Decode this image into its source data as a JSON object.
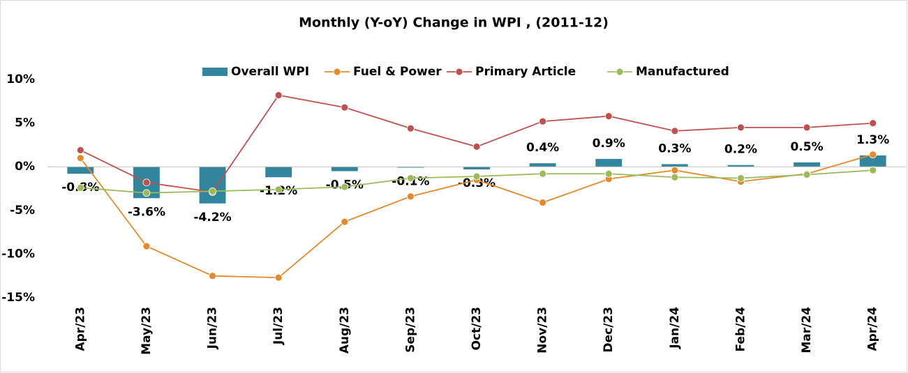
{
  "chart_data": {
    "type": "bar_line",
    "title": "Monthly (Y-oY) Change in WPI , (2011-12)",
    "categories": [
      "Apr/23",
      "May/23",
      "Jun/23",
      "Jul/23",
      "Aug/23",
      "Sep/23",
      "Oct/23",
      "Nov/23",
      "Dec/23",
      "Jan/24",
      "Feb/24",
      "Mar/24",
      "Apr/24"
    ],
    "series": [
      {
        "name": "Overall WPI",
        "type": "bar",
        "color": "#31859c",
        "values": [
          -0.8,
          -3.6,
          -4.2,
          -1.2,
          -0.5,
          -0.1,
          -0.3,
          0.4,
          0.9,
          0.3,
          0.2,
          0.5,
          1.3
        ],
        "value_labels": [
          "-0.8%",
          "-3.6%",
          "-4.2%",
          "-1.2%",
          "-0.5%",
          "-0.1%",
          "-0.3%",
          "0.4%",
          "0.9%",
          "0.3%",
          "0.2%",
          "0.5%",
          "1.3%"
        ]
      },
      {
        "name": "Fuel & Power",
        "type": "line",
        "color": "#e58a2c",
        "values": [
          1.0,
          -9.1,
          -12.5,
          -12.7,
          -6.3,
          -3.4,
          -1.5,
          -4.1,
          -1.4,
          -0.4,
          -1.7,
          -0.8,
          1.4
        ]
      },
      {
        "name": "Primary Article",
        "type": "line",
        "color": "#c0504d",
        "values": [
          1.9,
          -1.8,
          -2.9,
          8.2,
          6.8,
          4.4,
          2.3,
          5.2,
          5.8,
          4.1,
          4.5,
          4.5,
          5.0
        ]
      },
      {
        "name": "Manufactured",
        "type": "line",
        "color": "#9bbb59",
        "values": [
          -2.4,
          -3.0,
          -2.8,
          -2.6,
          -2.3,
          -1.3,
          -1.1,
          -0.8,
          -0.8,
          -1.2,
          -1.3,
          -0.9,
          -0.4
        ]
      }
    ],
    "ylim": [
      -15,
      10
    ],
    "yticks": [
      {
        "value": 10,
        "label": "10%"
      },
      {
        "value": 5,
        "label": "5%"
      },
      {
        "value": 0,
        "label": "0%"
      },
      {
        "value": -5,
        "label": "-5%"
      },
      {
        "value": -10,
        "label": "-10%"
      },
      {
        "value": -15,
        "label": "-15%"
      }
    ],
    "grid": false,
    "legend": "top"
  }
}
